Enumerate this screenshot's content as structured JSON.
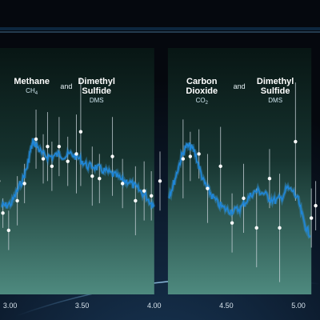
{
  "chart_data": {
    "type": "line",
    "x_unit": "wavelength (microns)",
    "xlim": [
      2.93,
      5.15
    ],
    "ylim": [
      0,
      1
    ],
    "x_ticks": [
      {
        "value": 3.0,
        "label": "3.00"
      },
      {
        "value": 3.5,
        "label": "3.50"
      },
      {
        "value": 4.0,
        "label": "4.00"
      },
      {
        "value": 4.5,
        "label": "4.50"
      },
      {
        "value": 5.0,
        "label": "5.00"
      }
    ],
    "annotations": [
      {
        "name": "methane",
        "title": "Methane",
        "formula_main": "CH",
        "formula_sub": "4",
        "x": 3.15
      },
      {
        "name": "and-1",
        "text": "and",
        "x": 3.39
      },
      {
        "name": "dms-1",
        "title_lines": [
          "Dimethyl",
          "Sulfide"
        ],
        "abbr": "DMS",
        "x": 3.6
      },
      {
        "name": "co2",
        "title_lines": [
          "Carbon",
          "Dioxide"
        ],
        "formula_main": "CO",
        "formula_sub": "2",
        "x": 4.33
      },
      {
        "name": "and-2",
        "text": "and",
        "x": 4.59
      },
      {
        "name": "dms-2",
        "title_lines": [
          "Dimethyl",
          "Sulfide"
        ],
        "abbr": "DMS",
        "x": 4.84
      }
    ],
    "gaps": [
      [
        4.0,
        4.095
      ],
      [
        5.09,
        5.15
      ]
    ],
    "model_curve": {
      "x": [
        2.94,
        2.97,
        3.01,
        3.05,
        3.09,
        3.12,
        3.14,
        3.16,
        3.19,
        3.22,
        3.26,
        3.3,
        3.34,
        3.38,
        3.42,
        3.46,
        3.5,
        3.54,
        3.58,
        3.62,
        3.66,
        3.7,
        3.74,
        3.78,
        3.82,
        3.86,
        3.9,
        3.94,
        3.98,
        4.0,
        4.1,
        4.13,
        4.16,
        4.19,
        4.22,
        4.25,
        4.28,
        4.31,
        4.34,
        4.37,
        4.4,
        4.44,
        4.48,
        4.52,
        4.56,
        4.6,
        4.64,
        4.68,
        4.72,
        4.76,
        4.8,
        4.84,
        4.88,
        4.92,
        4.96,
        5.0,
        5.03,
        5.06,
        5.09
      ],
      "y": [
        0.36,
        0.36,
        0.37,
        0.42,
        0.47,
        0.52,
        0.58,
        0.62,
        0.6,
        0.57,
        0.56,
        0.56,
        0.57,
        0.56,
        0.57,
        0.56,
        0.54,
        0.52,
        0.52,
        0.51,
        0.5,
        0.49,
        0.48,
        0.46,
        0.46,
        0.44,
        0.42,
        0.4,
        0.37,
        0.36,
        0.4,
        0.44,
        0.5,
        0.56,
        0.6,
        0.6,
        0.58,
        0.52,
        0.46,
        0.43,
        0.4,
        0.37,
        0.35,
        0.34,
        0.34,
        0.35,
        0.38,
        0.41,
        0.42,
        0.41,
        0.39,
        0.38,
        0.39,
        0.43,
        0.42,
        0.38,
        0.31,
        0.26,
        0.24
      ]
    },
    "observations": [
      {
        "x": 2.92,
        "y": 0.46,
        "err": 0.0
      },
      {
        "x": 2.95,
        "y": 0.33,
        "err": 0.06
      },
      {
        "x": 2.99,
        "y": 0.26,
        "err": 0.08
      },
      {
        "x": 3.05,
        "y": 0.38,
        "err": 0.1
      },
      {
        "x": 3.1,
        "y": 0.45,
        "err": 0.08
      },
      {
        "x": 3.18,
        "y": 0.63,
        "err": 0.12
      },
      {
        "x": 3.23,
        "y": 0.55,
        "err": 0.1
      },
      {
        "x": 3.26,
        "y": 0.6,
        "err": 0.14
      },
      {
        "x": 3.29,
        "y": 0.52,
        "err": 0.1
      },
      {
        "x": 3.34,
        "y": 0.6,
        "err": 0.12
      },
      {
        "x": 3.4,
        "y": 0.54,
        "err": 0.1
      },
      {
        "x": 3.46,
        "y": 0.57,
        "err": 0.16
      },
      {
        "x": 3.49,
        "y": 0.66,
        "err": 0.22
      },
      {
        "x": 3.57,
        "y": 0.48,
        "err": 0.12
      },
      {
        "x": 3.62,
        "y": 0.47,
        "err": 0.1
      },
      {
        "x": 3.71,
        "y": 0.56,
        "err": 0.16
      },
      {
        "x": 3.78,
        "y": 0.45,
        "err": 0.1
      },
      {
        "x": 3.87,
        "y": 0.38,
        "err": 0.14
      },
      {
        "x": 3.93,
        "y": 0.42,
        "err": 0.12
      },
      {
        "x": 3.98,
        "y": 0.4,
        "err": 0.1
      },
      {
        "x": 4.04,
        "y": 0.46,
        "err": 0.12
      },
      {
        "x": 4.2,
        "y": 0.55,
        "err": 0.16
      },
      {
        "x": 4.25,
        "y": 0.56,
        "err": 0.1
      },
      {
        "x": 4.31,
        "y": 0.57,
        "err": 0.1
      },
      {
        "x": 4.37,
        "y": 0.43,
        "err": 0.14
      },
      {
        "x": 4.46,
        "y": 0.52,
        "err": 0.16
      },
      {
        "x": 4.54,
        "y": 0.29,
        "err": 0.12
      },
      {
        "x": 4.62,
        "y": 0.39,
        "err": 0.14
      },
      {
        "x": 4.71,
        "y": 0.27,
        "err": 0.16
      },
      {
        "x": 4.8,
        "y": 0.47,
        "err": 0.12
      },
      {
        "x": 4.87,
        "y": 0.27,
        "err": 0.22
      },
      {
        "x": 4.98,
        "y": 0.62,
        "err": 0.24
      },
      {
        "x": 5.09,
        "y": 0.31,
        "err": 0.12
      },
      {
        "x": 5.12,
        "y": 0.36,
        "err": 0.1
      }
    ],
    "colors": {
      "model": "#1f86d8",
      "model_glow": "#3aa2ee",
      "panel_top": "#0a1a1a",
      "panel_bottom": "#4a8a82",
      "observation": "#ffffff",
      "error_bar": "#c9d3da"
    }
  }
}
